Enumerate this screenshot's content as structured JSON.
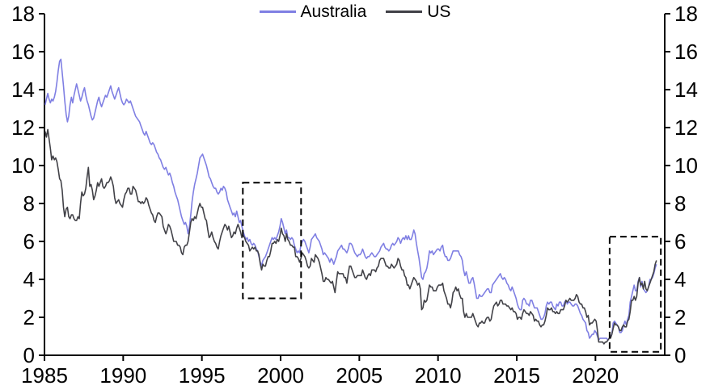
{
  "colors": {
    "background": "#ffffff",
    "axis": "#000000",
    "annotation_box": "#000000",
    "australia_line": "#7f7fe3",
    "us_line": "#414147"
  },
  "chart_data": {
    "type": "line",
    "title": "",
    "xlabel": "",
    "ylabel": "",
    "x_axis": {
      "range": [
        1985,
        2024.4
      ],
      "tick_years": [
        1985,
        1990,
        1995,
        2000,
        2005,
        2010,
        2015,
        2020
      ],
      "gridlines": false
    },
    "y_axis": {
      "range": [
        0,
        18
      ],
      "ticks": [
        0,
        2,
        4,
        6,
        8,
        10,
        12,
        14,
        16,
        18
      ],
      "sides": "left-and-right",
      "gridlines": false
    },
    "legend": {
      "position": "top-center",
      "entries": [
        {
          "label": "Australia",
          "color": "#7f7fe3"
        },
        {
          "label": "US",
          "color": "#414147"
        }
      ]
    },
    "series": [
      {
        "name": "Australia",
        "color": "#7f7fe3",
        "start": "1985-01",
        "frequency": "monthly",
        "values": [
          13.2,
          13.5,
          13.8,
          13.5,
          13.3,
          13.5,
          13.4,
          13.6,
          13.9,
          14.4,
          15.0,
          15.5,
          15.6,
          14.9,
          14.2,
          13.4,
          12.7,
          12.3,
          12.6,
          13.2,
          13.6,
          13.3,
          13.7,
          14.0,
          14.3,
          14.0,
          13.7,
          13.4,
          13.6,
          13.9,
          14.1,
          13.7,
          13.4,
          13.2,
          12.9,
          12.6,
          12.4,
          12.5,
          12.8,
          13.1,
          13.4,
          13.6,
          13.3,
          13.1,
          13.3,
          13.5,
          13.7,
          13.6,
          13.8,
          14.0,
          14.2,
          13.9,
          13.7,
          13.5,
          13.7,
          13.9,
          14.1,
          13.8,
          13.5,
          13.3,
          13.2,
          13.3,
          13.5,
          13.4,
          13.3,
          13.4,
          13.2,
          13.0,
          12.8,
          12.6,
          12.5,
          12.4,
          12.3,
          12.1,
          11.9,
          11.7,
          11.6,
          11.8,
          11.6,
          11.4,
          11.2,
          11.1,
          11.2,
          11.1,
          10.9,
          10.7,
          10.6,
          10.4,
          10.3,
          10.1,
          9.9,
          9.8,
          9.9,
          9.7,
          9.5,
          9.6,
          9.4,
          9.1,
          8.9,
          8.6,
          8.4,
          8.2,
          7.9,
          7.6,
          7.3,
          7.1,
          6.9,
          7.0,
          6.8,
          6.4,
          6.8,
          7.4,
          8.1,
          8.6,
          9.0,
          9.3,
          9.6,
          10.0,
          10.4,
          10.5,
          10.6,
          10.4,
          10.2,
          10.0,
          9.7,
          9.4,
          9.3,
          9.1,
          8.9,
          8.8,
          8.8,
          8.6,
          8.5,
          8.6,
          8.8,
          8.7,
          8.9,
          8.8,
          8.6,
          8.2,
          8.0,
          7.8,
          7.6,
          7.4,
          7.5,
          7.3,
          7.6,
          7.3,
          7.0,
          7.1,
          6.8,
          6.5,
          6.3,
          6.1,
          6.2,
          6.0,
          6.1,
          5.9,
          5.8,
          5.9,
          5.8,
          5.6,
          5.5,
          5.2,
          4.9,
          4.7,
          5.0,
          5.1,
          5.2,
          5.4,
          5.6,
          5.8,
          6.0,
          6.2,
          6.1,
          6.2,
          6.1,
          6.3,
          6.5,
          6.8,
          7.2,
          7.0,
          6.7,
          6.4,
          6.6,
          6.2,
          6.2,
          6.1,
          6.2,
          6.1,
          5.8,
          5.6,
          5.4,
          5.5,
          5.4,
          5.8,
          6.0,
          6.1,
          6.0,
          5.8,
          5.6,
          5.4,
          5.7,
          6.1,
          6.2,
          6.3,
          6.4,
          6.2,
          6.1,
          6.0,
          5.8,
          5.6,
          5.3,
          5.4,
          5.3,
          5.2,
          5.1,
          4.9,
          5.1,
          5.0,
          4.8,
          5.0,
          5.2,
          5.5,
          5.6,
          5.7,
          5.8,
          5.6,
          5.6,
          5.5,
          5.4,
          5.6,
          5.9,
          5.9,
          5.8,
          5.6,
          5.4,
          5.3,
          5.2,
          5.3,
          5.3,
          5.4,
          5.6,
          5.4,
          5.2,
          5.1,
          5.2,
          5.2,
          5.3,
          5.4,
          5.3,
          5.2,
          5.2,
          5.3,
          5.4,
          5.5,
          5.7,
          5.8,
          5.9,
          5.7,
          5.6,
          5.6,
          5.5,
          5.6,
          5.8,
          5.9,
          5.8,
          5.9,
          6.0,
          6.2,
          6.1,
          5.9,
          6.1,
          6.2,
          6.1,
          6.3,
          6.1,
          6.3,
          6.1,
          6.1,
          6.3,
          6.6,
          6.4,
          5.9,
          5.5,
          5.1,
          4.6,
          4.1,
          4.0,
          4.3,
          4.4,
          4.6,
          5.0,
          5.5,
          5.4,
          5.5,
          5.3,
          5.4,
          5.5,
          5.6,
          5.6,
          5.5,
          5.7,
          5.8,
          5.4,
          5.2,
          5.2,
          5.0,
          5.0,
          5.1,
          5.3,
          5.5,
          5.5,
          5.5,
          5.5,
          5.5,
          5.3,
          5.2,
          5.0,
          4.5,
          4.2,
          4.4,
          4.1,
          3.8,
          3.8,
          4.0,
          4.1,
          3.8,
          3.4,
          3.0,
          3.0,
          3.2,
          3.1,
          3.1,
          3.2,
          3.3,
          3.4,
          3.5,
          3.5,
          3.3,
          3.3,
          3.7,
          3.8,
          3.9,
          4.0,
          4.1,
          4.2,
          4.3,
          4.1,
          4.0,
          4.1,
          4.0,
          3.8,
          3.7,
          3.5,
          3.4,
          3.6,
          3.4,
          3.2,
          3.0,
          2.7,
          2.5,
          2.4,
          2.4,
          2.9,
          3.0,
          2.9,
          2.7,
          2.7,
          2.6,
          2.9,
          2.9,
          2.7,
          2.5,
          2.5,
          2.5,
          2.3,
          2.1,
          1.9,
          1.9,
          2.0,
          2.2,
          2.6,
          2.8,
          2.7,
          2.8,
          2.8,
          2.6,
          2.5,
          2.4,
          2.7,
          2.6,
          2.8,
          2.8,
          2.6,
          2.6,
          2.8,
          2.9,
          2.7,
          2.8,
          2.8,
          2.7,
          2.6,
          2.6,
          2.7,
          2.7,
          2.6,
          2.4,
          2.2,
          2.1,
          1.9,
          1.8,
          1.7,
          1.3,
          1.2,
          0.9,
          1.0,
          1.1,
          1.1,
          1.3,
          1.2,
          1.0,
          0.8,
          0.9,
          0.9,
          0.9,
          0.9,
          0.9,
          0.9,
          0.8,
          0.9,
          1.0,
          1.1,
          1.7,
          1.8,
          1.7,
          1.6,
          1.5,
          1.2,
          1.2,
          1.3,
          1.6,
          1.8,
          1.6,
          1.9,
          2.1,
          2.8,
          3.1,
          3.4,
          3.7,
          3.4,
          3.4,
          3.9,
          4.1,
          3.6,
          3.9,
          3.5,
          3.4,
          3.3,
          3.4,
          3.6,
          4.0,
          4.0,
          4.1,
          4.3,
          4.6,
          4.8
        ]
      },
      {
        "name": "US",
        "color": "#414147",
        "start": "1985-01",
        "frequency": "monthly",
        "values": [
          11.8,
          11.5,
          11.9,
          11.4,
          10.9,
          10.3,
          10.5,
          10.3,
          10.4,
          10.2,
          9.8,
          9.3,
          9.2,
          8.7,
          7.8,
          7.3,
          7.7,
          7.8,
          7.3,
          7.2,
          7.4,
          7.4,
          7.2,
          7.1,
          7.1,
          7.3,
          7.2,
          8.0,
          8.6,
          8.4,
          8.5,
          8.8,
          9.4,
          9.9,
          8.9,
          9.0,
          8.7,
          8.2,
          8.4,
          8.7,
          9.1,
          8.9,
          9.1,
          9.3,
          8.9,
          8.8,
          8.9,
          9.1,
          9.1,
          9.2,
          9.4,
          9.2,
          8.9,
          8.3,
          8.0,
          8.1,
          8.2,
          8.0,
          7.9,
          7.8,
          8.2,
          8.5,
          8.6,
          8.8,
          8.8,
          8.5,
          8.5,
          8.9,
          8.8,
          8.7,
          8.4,
          8.1,
          8.1,
          8.0,
          8.1,
          8.0,
          8.1,
          8.3,
          8.2,
          7.9,
          7.7,
          7.5,
          7.4,
          7.1,
          7.0,
          7.3,
          7.5,
          7.5,
          7.4,
          7.3,
          6.8,
          6.6,
          6.4,
          6.6,
          6.9,
          6.8,
          6.6,
          6.3,
          6.0,
          6.0,
          6.0,
          5.8,
          5.8,
          5.7,
          5.4,
          5.3,
          5.7,
          5.8,
          5.8,
          6.0,
          6.5,
          7.0,
          7.2,
          7.1,
          7.3,
          7.2,
          7.5,
          7.8,
          8.0,
          7.8,
          7.8,
          7.5,
          7.2,
          7.1,
          6.6,
          6.2,
          6.3,
          6.5,
          6.2,
          6.0,
          5.9,
          5.7,
          5.6,
          6.0,
          6.3,
          6.5,
          6.7,
          6.9,
          6.8,
          6.6,
          6.8,
          6.5,
          6.2,
          6.3,
          6.5,
          6.4,
          6.7,
          6.9,
          6.7,
          6.5,
          6.2,
          6.3,
          6.2,
          6.0,
          5.9,
          5.8,
          5.5,
          5.6,
          5.7,
          5.6,
          5.7,
          5.5,
          5.5,
          5.3,
          4.8,
          4.5,
          4.8,
          4.7,
          4.7,
          5.0,
          5.2,
          5.2,
          5.5,
          5.9,
          5.9,
          6.0,
          5.9,
          6.1,
          6.0,
          6.3,
          6.7,
          6.4,
          6.3,
          6.0,
          6.4,
          6.1,
          6.0,
          5.8,
          5.8,
          5.7,
          5.7,
          5.2,
          5.2,
          5.1,
          4.9,
          5.1,
          5.4,
          5.3,
          5.2,
          5.0,
          4.7,
          4.6,
          4.7,
          5.1,
          5.0,
          4.9,
          5.3,
          5.2,
          5.1,
          4.9,
          4.6,
          4.3,
          3.9,
          3.9,
          4.1,
          4.0,
          4.0,
          3.9,
          3.8,
          3.9,
          3.6,
          3.3,
          3.9,
          4.4,
          4.3,
          4.3,
          4.3,
          4.3,
          4.1,
          4.1,
          3.8,
          4.3,
          4.7,
          4.7,
          4.5,
          4.3,
          4.1,
          4.1,
          4.2,
          4.2,
          4.2,
          4.2,
          4.5,
          4.3,
          4.1,
          4.0,
          4.2,
          4.3,
          4.2,
          4.5,
          4.5,
          4.5,
          4.4,
          4.6,
          4.7,
          5.0,
          5.1,
          5.1,
          5.1,
          4.9,
          4.7,
          4.7,
          4.6,
          4.6,
          4.8,
          4.7,
          4.6,
          4.7,
          4.8,
          5.1,
          5.0,
          4.7,
          4.5,
          4.5,
          4.2,
          4.1,
          3.7,
          3.7,
          3.5,
          3.7,
          3.9,
          4.1,
          4.0,
          3.9,
          3.7,
          3.8,
          3.5,
          2.4,
          2.5,
          2.9,
          2.8,
          2.9,
          3.3,
          3.7,
          3.6,
          3.6,
          3.4,
          3.4,
          3.4,
          3.6,
          3.7,
          3.7,
          3.7,
          3.8,
          3.4,
          3.2,
          3.0,
          2.7,
          2.7,
          2.5,
          2.8,
          3.3,
          3.4,
          3.6,
          3.4,
          3.5,
          3.2,
          3.0,
          3.0,
          2.3,
          2.0,
          2.2,
          2.0,
          2.0,
          2.0,
          2.0,
          2.2,
          2.0,
          1.8,
          1.6,
          1.5,
          1.7,
          1.7,
          1.8,
          1.7,
          1.7,
          1.9,
          2.0,
          2.0,
          1.8,
          1.9,
          2.3,
          2.6,
          2.7,
          2.8,
          2.6,
          2.7,
          2.9,
          2.9,
          2.7,
          2.7,
          2.7,
          2.6,
          2.6,
          2.5,
          2.4,
          2.5,
          2.3,
          2.3,
          2.2,
          1.9,
          2.0,
          2.0,
          1.9,
          2.2,
          2.4,
          2.3,
          2.2,
          2.2,
          2.1,
          2.3,
          2.2,
          2.1,
          1.8,
          1.9,
          1.8,
          1.8,
          1.6,
          1.5,
          1.6,
          1.6,
          1.8,
          2.1,
          2.5,
          2.4,
          2.4,
          2.5,
          2.3,
          2.3,
          2.2,
          2.3,
          2.2,
          2.2,
          2.4,
          2.4,
          2.4,
          2.6,
          2.9,
          2.8,
          2.9,
          3.0,
          2.9,
          2.9,
          2.9,
          3.0,
          3.2,
          3.1,
          2.8,
          2.7,
          2.7,
          2.5,
          2.5,
          2.3,
          2.0,
          2.1,
          1.6,
          1.7,
          1.7,
          1.8,
          1.9,
          1.8,
          1.3,
          0.7,
          0.7,
          0.7,
          0.7,
          0.6,
          0.7,
          0.7,
          0.8,
          0.9,
          0.9,
          1.1,
          1.4,
          1.7,
          1.6,
          1.6,
          1.5,
          1.3,
          1.3,
          1.5,
          1.6,
          1.5,
          1.5,
          1.8,
          1.9,
          2.3,
          2.9,
          2.9,
          3.1,
          2.9,
          3.1,
          3.8,
          4.1,
          3.7,
          3.8,
          3.5,
          3.9,
          3.5,
          3.4,
          3.6,
          3.8,
          4.0,
          4.2,
          4.4,
          4.8,
          5.0
        ]
      }
    ],
    "annotations": {
      "dashed_boxes": [
        {
          "x1": 1997.6,
          "x2": 2001.3,
          "y1": 3.0,
          "y2": 9.1
        },
        {
          "x1": 2020.9,
          "x2": 2024.15,
          "y1": 0.18,
          "y2": 6.25
        }
      ]
    }
  }
}
